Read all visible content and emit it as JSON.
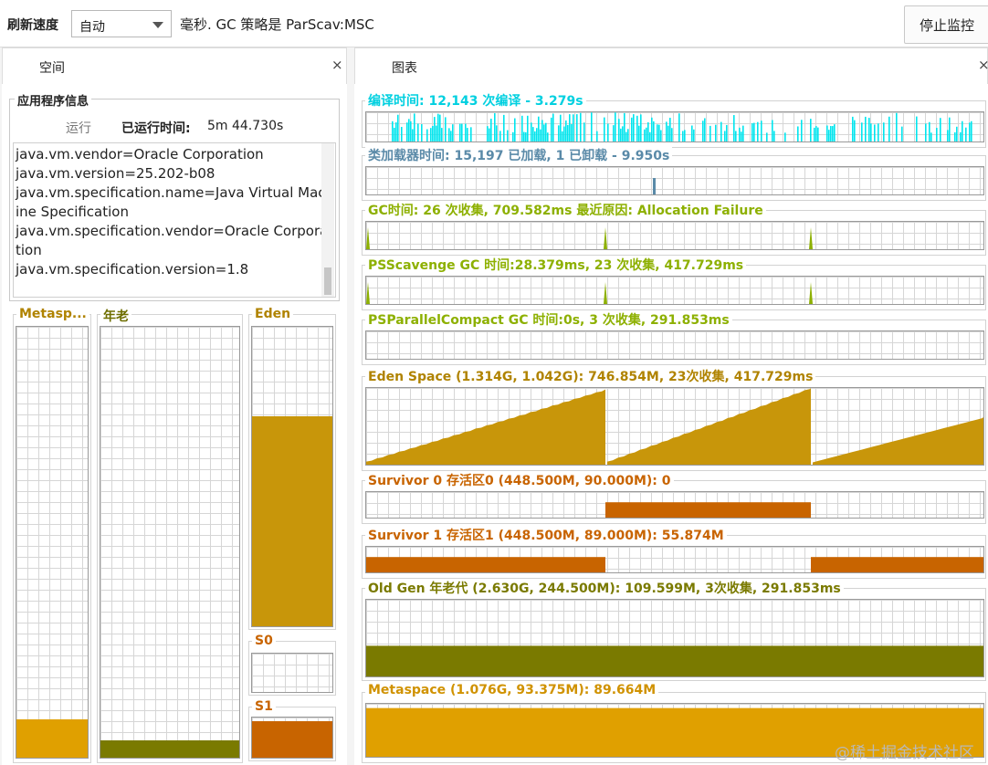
{
  "toolbar": {
    "refresh_label": "刷新速度",
    "refresh_value": "自动",
    "info_text": "毫秒. GC 策略是 ParScav:MSC",
    "stop_button": "停止监控"
  },
  "tabs": {
    "space": "空间",
    "charts": "图表",
    "close_glyph": "×"
  },
  "app_info": {
    "legend": "应用程序信息",
    "status": "运行",
    "uptime_label": "已运行时间:",
    "uptime_value": "5m 44.730s",
    "properties": [
      "java.vm.vendor=Oracle Corporation",
      "java.vm.version=25.202-b08",
      "java.vm.specification.name=Java Virtual Mach",
      "ine Specification",
      "java.vm.specification.vendor=Oracle Corpora",
      "tion",
      "java.vm.specification.version=1.8"
    ]
  },
  "spaces": {
    "metaspace": {
      "label": "Metasp...",
      "fill": 0.09,
      "color": "#e0a000"
    },
    "old": {
      "label": "年老",
      "fill": 0.04,
      "color": "#7a7a00"
    },
    "eden": {
      "label": "Eden",
      "fill": 0.7,
      "color": "#c8960a"
    },
    "s0": {
      "label": "S0",
      "fill": 0.0,
      "color": "#c86400"
    },
    "s1": {
      "label": "S1",
      "fill": 0.9,
      "color": "#c86400"
    }
  },
  "charts": {
    "compile": {
      "title": "编译时间: 12,143 次编译 - 3.279s",
      "color": "#00e5ee",
      "title_color": "#00d0e0"
    },
    "classloader": {
      "title": "类加载器时间: 15,197 已加载, 1 已卸载 - 9.950s",
      "color": "#5a8aa8",
      "title_color": "#5a8aa8"
    },
    "gc": {
      "title": "GC时间: 26 次收集, 709.582ms 最近原因: Allocation Failure",
      "color": "#8db000",
      "title_color": "#8db000"
    },
    "psscavenge": {
      "title": "PSScavenge GC 时间:28.379ms, 23 次收集, 417.729ms",
      "color": "#8db000",
      "title_color": "#8db000"
    },
    "psparallel": {
      "title": "PSParallelCompact GC 时间:0s, 3 次收集, 291.853ms",
      "color": "#8db000",
      "title_color": "#8db000"
    },
    "eden": {
      "title": "Eden Space (1.314G, 1.042G): 746.854M, 23次收集, 417.729ms",
      "color": "#c8960a",
      "title_color": "#b08300"
    },
    "survivor0": {
      "title": "Survivor 0 存活区0 (448.500M, 90.000M): 0",
      "color": "#c86400",
      "title_color": "#c86400"
    },
    "survivor1": {
      "title": "Survivor 1 存活区1 (448.500M, 89.000M): 55.874M",
      "color": "#c86400",
      "title_color": "#c86400"
    },
    "oldgen": {
      "title": "Old Gen 年老代 (2.630G, 244.500M): 109.599M, 3次收集, 291.853ms",
      "color": "#7a7a00",
      "title_color": "#7a7a00"
    },
    "metaspace": {
      "title": "Metaspace (1.076G, 93.375M): 89.664M",
      "color": "#e0a000",
      "title_color": "#d09200"
    }
  },
  "watermark": "@稀土掘金技术社区"
}
